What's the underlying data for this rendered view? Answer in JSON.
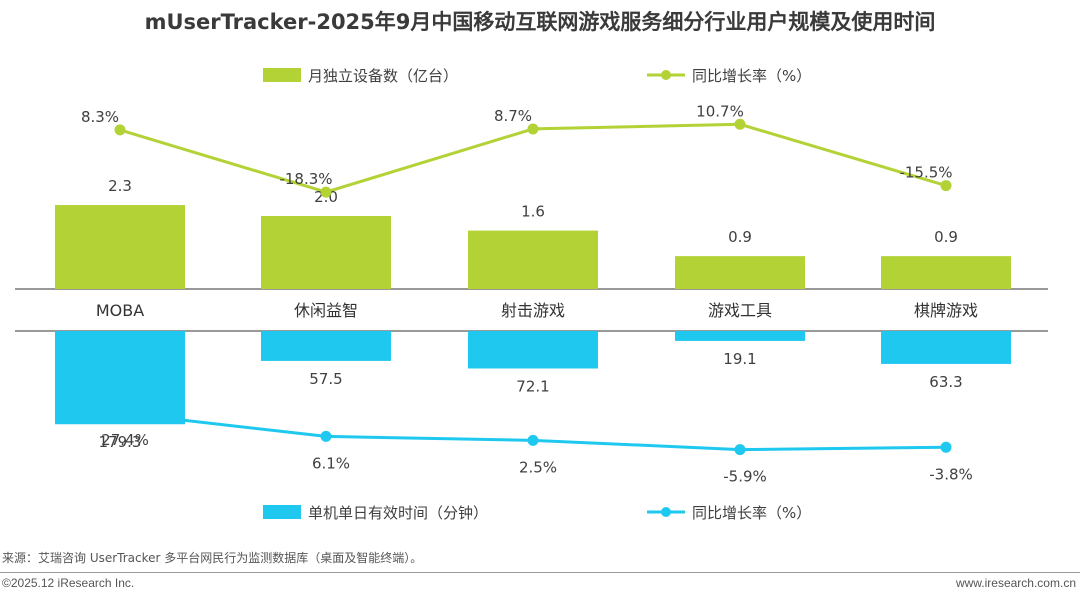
{
  "title": "mUserTracker-2025年9月中国移动互联网游戏服务细分行业用户规模及使用时间",
  "colors": {
    "green": "#b2d235",
    "blue": "#1ec8ef",
    "axis": "#333333"
  },
  "chart_data": {
    "type": "bar",
    "categories": [
      "MOBA",
      "休闲益智",
      "射击游戏",
      "游戏工具",
      "棋牌游戏"
    ],
    "series": [
      {
        "name": "月独立设备数（亿台）",
        "type": "bar",
        "values": [
          2.3,
          2.0,
          1.6,
          0.9,
          0.9
        ],
        "labels": [
          "2.3",
          "2.0",
          "1.6",
          "0.9",
          "0.9"
        ]
      },
      {
        "name": "同比增长率（%）",
        "type": "line",
        "values": [
          8.3,
          -18.3,
          8.7,
          10.7,
          -15.5
        ],
        "labels": [
          "8.3%",
          "-18.3%",
          "8.7%",
          "10.7%",
          "-15.5%"
        ]
      },
      {
        "name": "单机单日有效时间（分钟）",
        "type": "bar",
        "values": [
          179.3,
          57.5,
          72.1,
          19.1,
          63.3
        ],
        "labels": [
          "179.3",
          "57.5",
          "72.1",
          "19.1",
          "63.3"
        ]
      },
      {
        "name": "同比增长率（%）",
        "type": "line",
        "values": [
          27.4,
          6.1,
          2.5,
          -5.9,
          -3.8
        ],
        "labels": [
          "27.4%",
          "6.1%",
          "2.5%",
          "-5.9%",
          "-3.8%"
        ]
      }
    ]
  },
  "source": "来源：艾瑞咨询 UserTracker 多平台网民行为监测数据库（桌面及智能终端）。",
  "copyright": "©2025.12 iResearch Inc.",
  "website": "www.iresearch.com.cn"
}
